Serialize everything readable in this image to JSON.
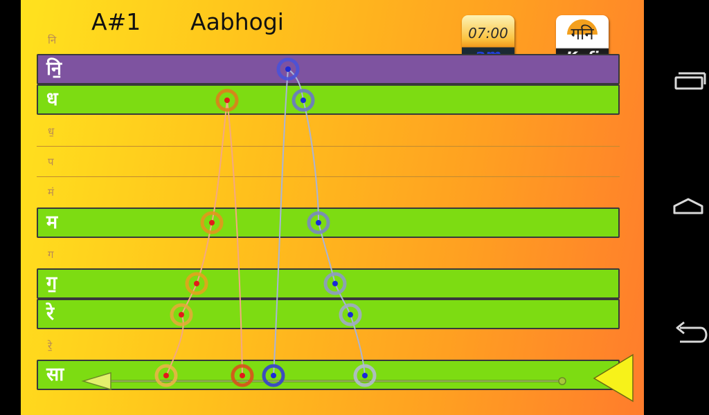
{
  "header": {
    "note": "A#1",
    "raga": "Aabhogi"
  },
  "time_button": {
    "time": "07:00",
    "ampm": "am"
  },
  "thaat_button": {
    "glyph": "गनि",
    "name": "Kafi"
  },
  "rows": [
    {
      "label": "नि",
      "type": "small"
    },
    {
      "label": "नि॒",
      "type": "purple"
    },
    {
      "label": "ध",
      "type": "green"
    },
    {
      "label": "ध॒",
      "type": "thin"
    },
    {
      "label": "प",
      "type": "thin"
    },
    {
      "label": "मं",
      "type": "thin"
    },
    {
      "label": "म",
      "type": "green"
    },
    {
      "label": "ग",
      "type": "small"
    },
    {
      "label": "ग॒",
      "type": "green"
    },
    {
      "label": "रे",
      "type": "green"
    },
    {
      "label": "रे॒",
      "type": "small"
    },
    {
      "label": "सा",
      "type": "green"
    }
  ],
  "colors": {
    "aroha": "#e07a1c",
    "avaroha": "#6a78c8",
    "row_green": "#7ddc12",
    "row_purple": "#7e53a0"
  },
  "icons": {
    "play_left": "triangle-left-icon",
    "play_right": "triangle-right-icon",
    "recents": "recents-icon",
    "home": "home-icon",
    "back": "back-icon"
  }
}
